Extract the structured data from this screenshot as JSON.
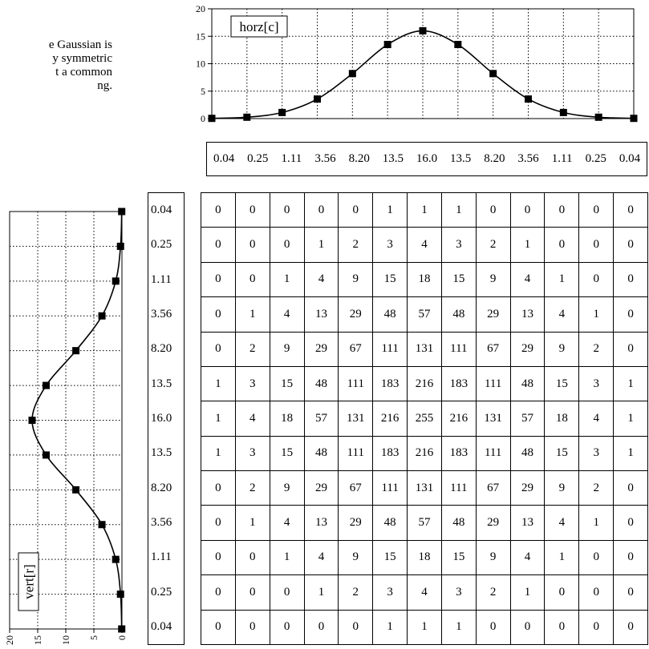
{
  "caption": {
    "lines": [
      "e Gaussian is",
      "y symmetric",
      "t a common",
      "ng."
    ]
  },
  "chart_data": [
    {
      "type": "line",
      "title": "horz[c]",
      "orientation": "horizontal",
      "x": [
        0,
        1,
        2,
        3,
        4,
        5,
        6,
        7,
        8,
        9,
        10,
        11,
        12
      ],
      "values": [
        0.04,
        0.25,
        1.11,
        3.56,
        8.2,
        13.5,
        16.0,
        13.5,
        8.2,
        3.56,
        1.11,
        0.25,
        0.04
      ],
      "ylim": [
        0,
        20
      ],
      "yticks": [
        "0",
        "5",
        "10",
        "15",
        "20"
      ],
      "grid": "dotted"
    },
    {
      "type": "line",
      "title": "vert[r]",
      "orientation": "vertical",
      "x": [
        0,
        1,
        2,
        3,
        4,
        5,
        6,
        7,
        8,
        9,
        10,
        11,
        12
      ],
      "values": [
        0.04,
        0.25,
        1.11,
        3.56,
        8.2,
        13.5,
        16.0,
        13.5,
        8.2,
        3.56,
        1.11,
        0.25,
        0.04
      ],
      "ylim": [
        0,
        20
      ],
      "yticks": [
        "20",
        "15",
        "10",
        "5",
        "0"
      ],
      "grid": "dotted"
    }
  ],
  "horizontal_values": [
    "0.04",
    "0.25",
    "1.11",
    "3.56",
    "8.20",
    "13.5",
    "16.0",
    "13.5",
    "8.20",
    "3.56",
    "1.11",
    "0.25",
    "0.04"
  ],
  "vertical_values": [
    "0.04",
    "0.25",
    "1.11",
    "3.56",
    "8.20",
    "13.5",
    "16.0",
    "13.5",
    "8.20",
    "3.56",
    "1.11",
    "0.25",
    "0.04"
  ],
  "kernel": [
    [
      0,
      0,
      0,
      0,
      0,
      1,
      1,
      1,
      0,
      0,
      0,
      0,
      0
    ],
    [
      0,
      0,
      0,
      1,
      2,
      3,
      4,
      3,
      2,
      1,
      0,
      0,
      0
    ],
    [
      0,
      0,
      1,
      4,
      9,
      15,
      18,
      15,
      9,
      4,
      1,
      0,
      0
    ],
    [
      0,
      1,
      4,
      13,
      29,
      48,
      57,
      48,
      29,
      13,
      4,
      1,
      0
    ],
    [
      0,
      2,
      9,
      29,
      67,
      111,
      131,
      111,
      67,
      29,
      9,
      2,
      0
    ],
    [
      1,
      3,
      15,
      48,
      111,
      183,
      216,
      183,
      111,
      48,
      15,
      3,
      1
    ],
    [
      1,
      4,
      18,
      57,
      131,
      216,
      255,
      216,
      131,
      57,
      18,
      4,
      1
    ],
    [
      1,
      3,
      15,
      48,
      111,
      183,
      216,
      183,
      111,
      48,
      15,
      3,
      1
    ],
    [
      0,
      2,
      9,
      29,
      67,
      111,
      131,
      111,
      67,
      29,
      9,
      2,
      0
    ],
    [
      0,
      1,
      4,
      13,
      29,
      48,
      57,
      48,
      29,
      13,
      4,
      1,
      0
    ],
    [
      0,
      0,
      1,
      4,
      9,
      15,
      18,
      15,
      9,
      4,
      1,
      0,
      0
    ],
    [
      0,
      0,
      0,
      1,
      2,
      3,
      4,
      3,
      2,
      1,
      0,
      0,
      0
    ],
    [
      0,
      0,
      0,
      0,
      0,
      1,
      1,
      1,
      0,
      0,
      0,
      0,
      0
    ]
  ]
}
